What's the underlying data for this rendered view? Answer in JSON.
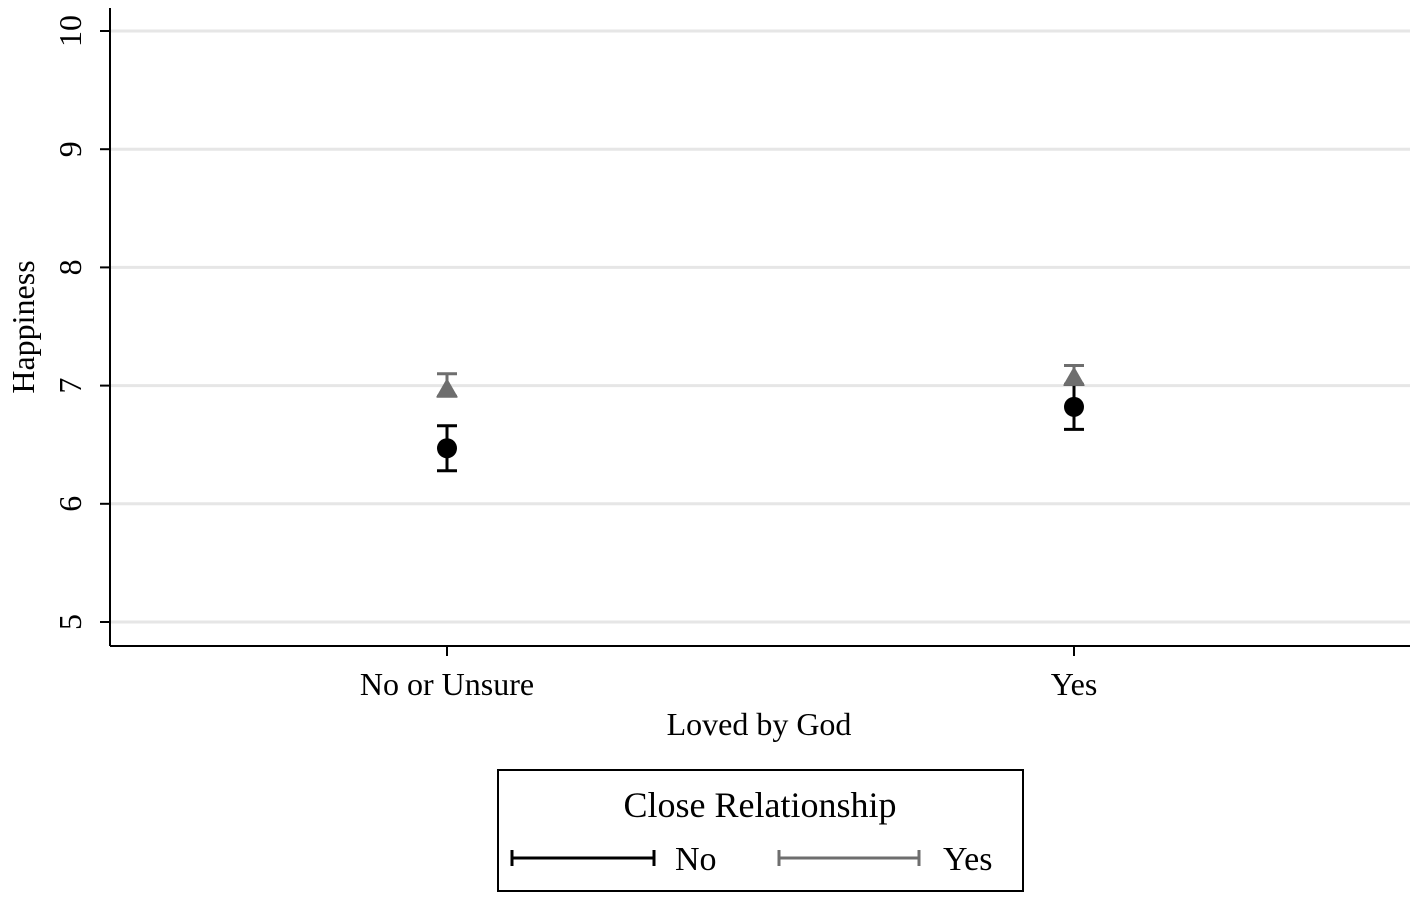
{
  "chart_data": {
    "type": "scatter",
    "title": "",
    "xlabel": "Loved by God",
    "ylabel": "Happiness",
    "ylim": [
      5,
      10
    ],
    "yticks": [
      "5",
      "6",
      "7",
      "8",
      "9",
      "10"
    ],
    "categories": [
      "No or Unsure",
      "Yes"
    ],
    "grid": true,
    "error_bars": true,
    "legend": {
      "title": "Close Relationship",
      "position": "bottom-center"
    },
    "series": [
      {
        "name": "No",
        "color": "#000000",
        "values": [
          6.47,
          6.82
        ],
        "lower": [
          6.28,
          6.63
        ],
        "upper": [
          6.66,
          7.01
        ]
      },
      {
        "name": "Yes",
        "color": "#6e6e6e",
        "values": [
          6.97,
          7.07
        ],
        "lower": [
          6.91,
          7.01
        ],
        "upper": [
          7.1,
          7.17
        ]
      }
    ]
  }
}
